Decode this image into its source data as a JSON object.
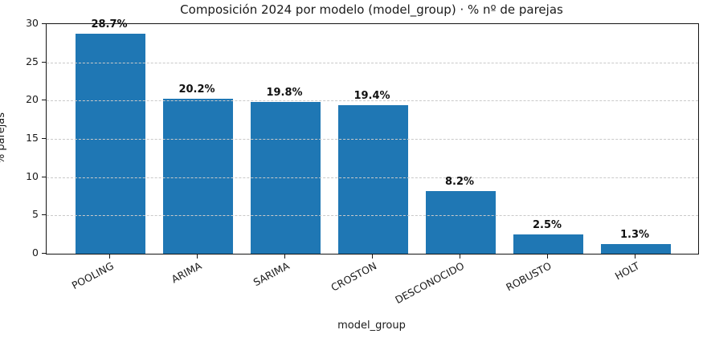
{
  "chart_data": {
    "type": "bar",
    "title": "Composición 2024 por modelo (model_group) · % nº de parejas",
    "xlabel": "model_group",
    "ylabel": "% parejas",
    "categories": [
      "POOLING",
      "ARIMA",
      "SARIMA",
      "CROSTON",
      "DESCONOCIDO",
      "ROBUSTO",
      "HOLT"
    ],
    "values": [
      28.7,
      20.2,
      19.8,
      19.4,
      8.2,
      2.5,
      1.3
    ],
    "value_labels": [
      "28.7%",
      "20.2%",
      "19.8%",
      "19.4%",
      "8.2%",
      "2.5%",
      "1.3%"
    ],
    "ylim": [
      0,
      30
    ],
    "yticks": [
      0,
      5,
      10,
      15,
      20,
      25,
      30
    ],
    "grid": "y-dashed-above-bars",
    "legend": "none",
    "xtick_rotation_deg": 28,
    "colors": {
      "bar": "#1f77b4",
      "grid": "#c9c9c9",
      "spine": "#141414",
      "text": "#1a1a1a"
    }
  }
}
